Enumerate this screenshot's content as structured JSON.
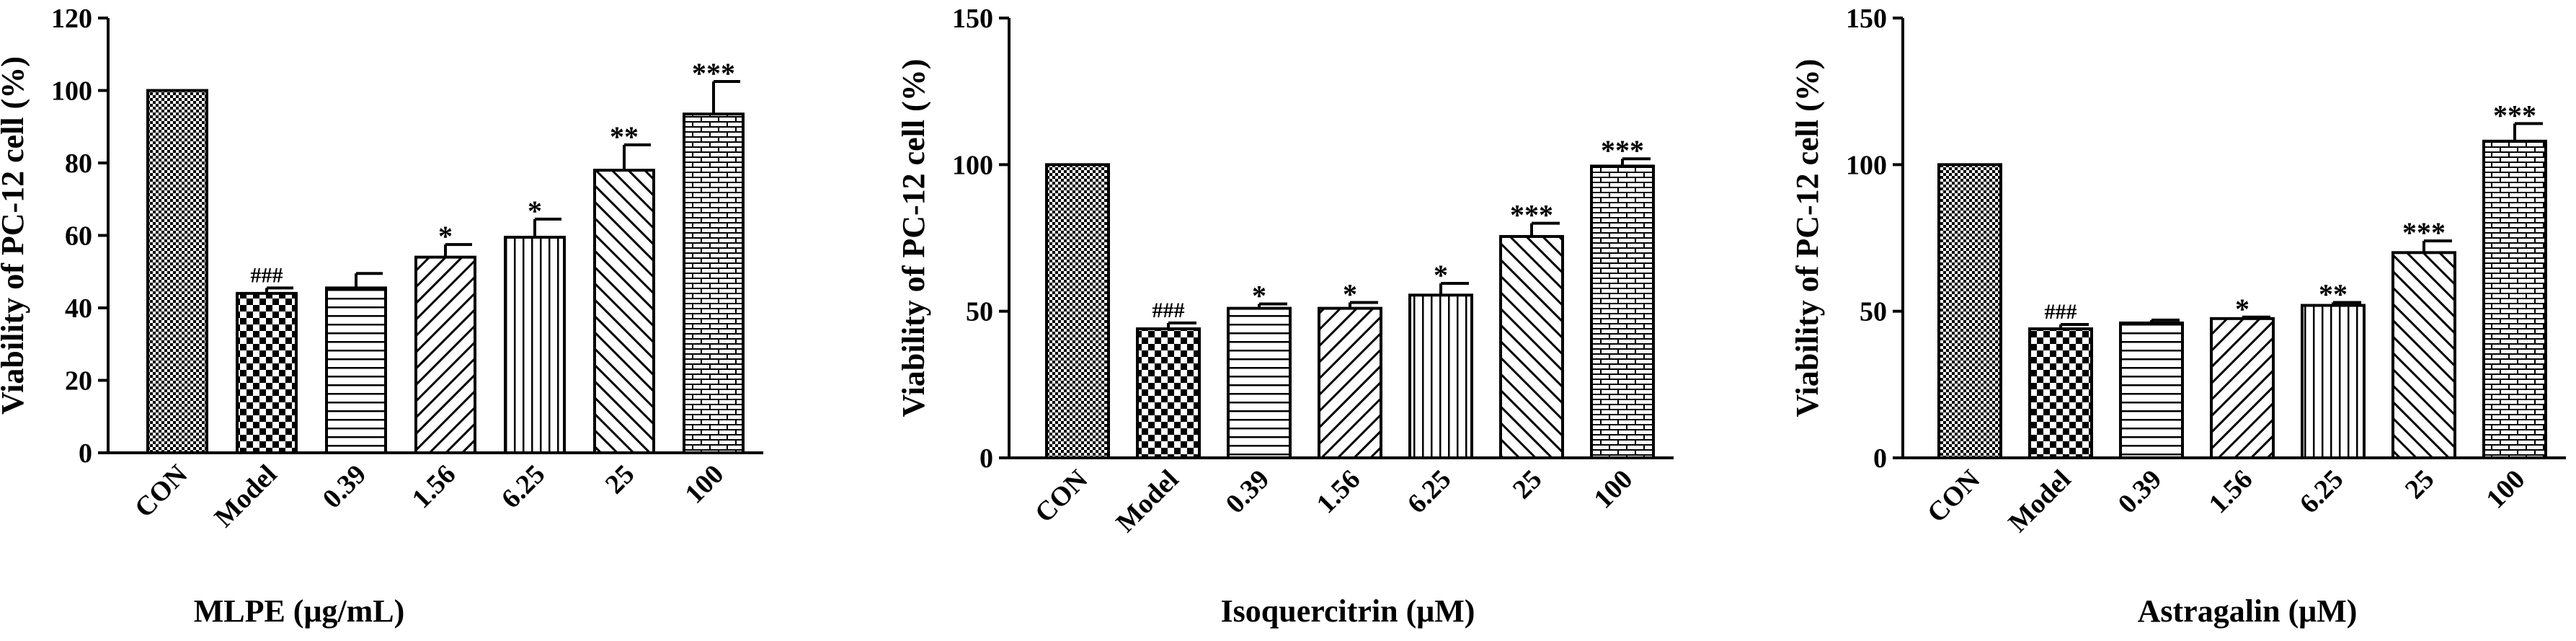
{
  "chart_data": [
    {
      "type": "bar",
      "title": "",
      "xlabel": "MLPE (μg/mL)",
      "ylabel": "Viability of PC-12 cell (%)",
      "ylim": [
        0,
        120
      ],
      "yticks": [
        "0",
        "20",
        "40",
        "60",
        "80",
        "100",
        "120"
      ],
      "categories": [
        "CON",
        "Model",
        "0.39",
        "1.56",
        "6.25",
        "25",
        "100"
      ],
      "values": [
        100,
        44,
        45.5,
        54,
        59.5,
        78,
        93.5
      ],
      "errors": [
        0,
        1.5,
        4,
        3.5,
        5,
        7,
        9
      ],
      "annotations": [
        "",
        "###",
        "",
        "*",
        "*",
        "**",
        "***"
      ],
      "patterns": [
        "checker-fine",
        "checker-large",
        "horizontal",
        "diagonal-right",
        "vertical",
        "diagonal-left",
        "brick"
      ]
    },
    {
      "type": "bar",
      "title": "",
      "xlabel": "Isoquercitrin (μM)",
      "ylabel": "Viability of PC-12 cell (%)",
      "ylim": [
        0,
        150
      ],
      "yticks": [
        "0",
        "50",
        "100",
        "150"
      ],
      "categories": [
        "CON",
        "Model",
        "0.39",
        "1.56",
        "6.25",
        "25",
        "100"
      ],
      "values": [
        100,
        44,
        51,
        51,
        55.5,
        75.5,
        99.5
      ],
      "errors": [
        0,
        2,
        1.5,
        2,
        4,
        4.5,
        2.5
      ],
      "annotations": [
        "",
        "###",
        "*",
        "*",
        "*",
        "***",
        "***"
      ],
      "patterns": [
        "checker-fine",
        "checker-large",
        "horizontal",
        "diagonal-right",
        "vertical",
        "diagonal-left",
        "brick"
      ]
    },
    {
      "type": "bar",
      "title": "",
      "xlabel": "Astragalin (μM)",
      "ylabel": "Viability of PC-12 cell (%)",
      "ylim": [
        0,
        150
      ],
      "yticks": [
        "0",
        "50",
        "100",
        "150"
      ],
      "categories": [
        "CON",
        "Model",
        "0.39",
        "1.56",
        "6.25",
        "25",
        "100"
      ],
      "values": [
        100,
        44,
        46,
        47.5,
        52,
        70,
        108
      ],
      "errors": [
        0,
        1.5,
        1,
        0.5,
        1,
        4,
        6
      ],
      "annotations": [
        "",
        "###",
        "",
        "*",
        "**",
        "***",
        "***"
      ],
      "patterns": [
        "checker-fine",
        "checker-large",
        "horizontal",
        "diagonal-right",
        "vertical",
        "diagonal-left",
        "brick"
      ]
    }
  ]
}
